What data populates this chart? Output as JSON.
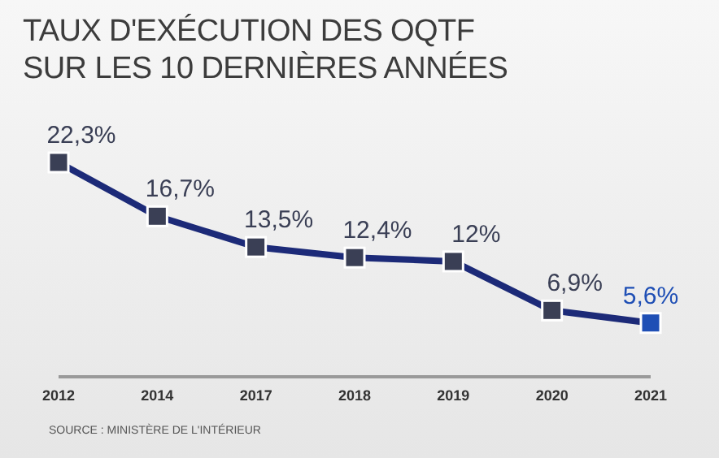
{
  "chart_data": {
    "type": "line",
    "title": "TAUX D'EXÉCUTION DES OQTF\nSUR LES 10 DERNIÈRES ANNÉES",
    "categories": [
      "2012",
      "2014",
      "2017",
      "2018",
      "2019",
      "2020",
      "2021"
    ],
    "values": [
      22.3,
      16.7,
      13.5,
      12.4,
      12,
      6.9,
      5.6
    ],
    "value_labels": [
      "22,3%",
      "16,7%",
      "13,5%",
      "12,4%",
      "12%",
      "6,9%",
      "5,6%"
    ],
    "color": "#1c2a78",
    "colors": [
      "#3a3f55",
      "#3a3f55",
      "#3a3f55",
      "#3a3f55",
      "#3a3f55",
      "#3a3f55",
      "#1f4fb5"
    ],
    "marker": "square",
    "annotations": [
      "SOURCE : MINISTÈRE DE L'INTÉRIEUR"
    ]
  }
}
